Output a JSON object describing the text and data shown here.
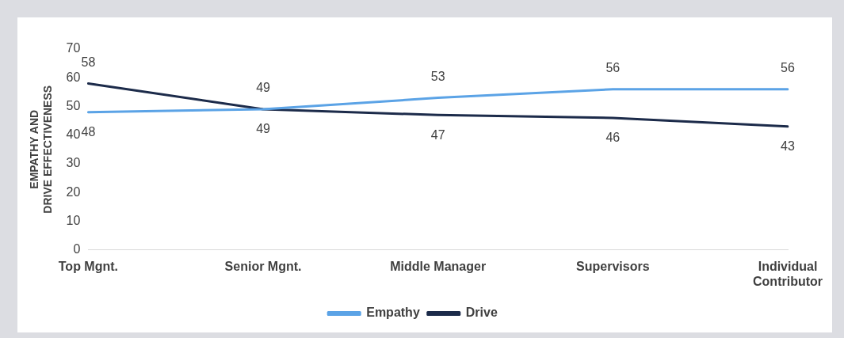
{
  "chart_data": {
    "type": "line",
    "ylabel": "EMPATHY AND DRIVE EFFECTIVENESS",
    "categories": [
      "Top Mgnt.",
      "Senior Mgnt.",
      "Middle Manager",
      "Supervisors",
      "Individual Contributor"
    ],
    "series": [
      {
        "name": "Empathy",
        "color": "#5ba3e6",
        "values": [
          48,
          49,
          53,
          56,
          56
        ]
      },
      {
        "name": "Drive",
        "color": "#1c2b4a",
        "values": [
          58,
          49,
          47,
          46,
          43
        ]
      }
    ],
    "ylim": [
      0,
      70
    ],
    "yticks": [
      0,
      10,
      20,
      30,
      40,
      50,
      60,
      70
    ],
    "grid": false,
    "legend": "bottom",
    "data_labels": true,
    "marker": "none",
    "line_style": "solid"
  }
}
